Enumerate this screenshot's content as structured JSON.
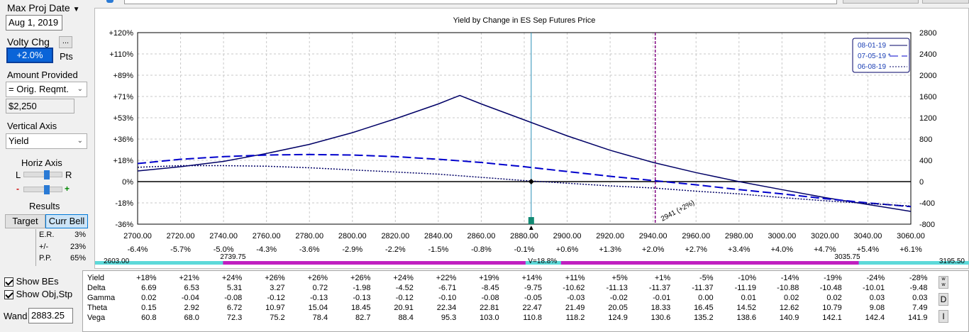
{
  "left_panel": {
    "max_proj_date_label": "Max Proj Date",
    "max_proj_date_value": "Aug 1, 2019",
    "volty_chg_label": "Volty Chg",
    "volty_chg_value": "+2.0%",
    "volty_chg_units": "Pts",
    "ellipsis_label": "...",
    "amount_provided_label": "Amount Provided",
    "amount_provided_option": "= Orig. Reqmt.",
    "amount_value": "$2,250",
    "vertical_axis_label": "Vertical Axis",
    "vertical_axis_option": "Yield",
    "horiz_axis_label": "Horiz Axis",
    "horiz_left": "L",
    "horiz_right": "R",
    "minus": "-",
    "plus": "+",
    "horiz_slider_level": 0.6,
    "zoom_slider_level": 0.6,
    "results_label": "Results",
    "target_label": "Target",
    "curr_bell_label": "Curr Bell",
    "results_rows": [
      {
        "label": "E.R.",
        "value": "3%"
      },
      {
        "label": "+/-",
        "value": "23%"
      },
      {
        "label": "P.P.",
        "value": "65%"
      }
    ],
    "show_bes_label": "Show BEs",
    "show_obj_stp_label": "Show Obj,Stp",
    "wand_label": "Wand",
    "wand_value": "2883.25"
  },
  "chart": {
    "title": "Yield by Change in ES Sep Futures Price",
    "legend": [
      "08-01-19",
      "07-05-19 *",
      "06-08-19"
    ],
    "left_ticks": [
      "+120%",
      "+110%",
      "+89%",
      "+71%",
      "+53%",
      "+36%",
      "+18%",
      "0%",
      "-18%",
      "-36%"
    ],
    "right_ticks": [
      "2800",
      "2400",
      "2000",
      "1600",
      "1200",
      "800",
      "400",
      "0",
      "-400",
      "-800"
    ],
    "x_ticks": [
      "2700.00",
      "2720.00",
      "2740.00",
      "2760.00",
      "2780.00",
      "2800.00",
      "2820.00",
      "2840.00",
      "2860.00",
      "2880.00",
      "2900.00",
      "2920.00",
      "2940.00",
      "2960.00",
      "2980.00",
      "3000.00",
      "3020.00",
      "3040.00",
      "3060.00"
    ],
    "x_pct_ticks": [
      "-6.4%",
      "-5.7%",
      "-5.0%",
      "-4.3%",
      "-3.6%",
      "-2.9%",
      "-2.2%",
      "-1.5%",
      "-0.8%",
      "-0.1%",
      "+0.6%",
      "+1.3%",
      "+2.0%",
      "+2.7%",
      "+3.4%",
      "+4.0%",
      "+4.7%",
      "+5.4%",
      "+6.1%"
    ],
    "marker_label": "2941 (+2%)",
    "range_left": "2603.00",
    "range_right": "3195.50",
    "range_inner_left": "2739.75",
    "range_inner_right": "3035.75",
    "range_center": "V=18.8%"
  },
  "chart_data": {
    "type": "line",
    "title": "Yield by Change in ES Sep Futures Price",
    "xlim": [
      2700,
      3060
    ],
    "ylim": [
      -800,
      2800
    ],
    "current_price": 2883.25,
    "target_price": 2941,
    "series": [
      {
        "name": "08-01-19",
        "x": [
          2700,
          2720,
          2740,
          2760,
          2780,
          2800,
          2820,
          2840,
          2850,
          2860,
          2880,
          2900,
          2920,
          2940,
          2960,
          2980,
          3000,
          3020,
          3040,
          3060
        ],
        "y": [
          200,
          280,
          380,
          530,
          700,
          920,
          1180,
          1460,
          1620,
          1460,
          1160,
          860,
          590,
          360,
          170,
          0,
          -150,
          -300,
          -430,
          -560
        ]
      },
      {
        "name": "07-05-19 *",
        "x": [
          2700,
          2720,
          2740,
          2760,
          2780,
          2800,
          2820,
          2840,
          2860,
          2880,
          2900,
          2920,
          2940,
          2960,
          2980,
          3000,
          3020,
          3040,
          3060
        ],
        "y": [
          340,
          420,
          470,
          500,
          510,
          500,
          470,
          420,
          360,
          280,
          190,
          100,
          20,
          -60,
          -150,
          -230,
          -320,
          -400,
          -470
        ]
      },
      {
        "name": "06-08-19",
        "x": [
          2700,
          2720,
          2740,
          2760,
          2780,
          2800,
          2820,
          2840,
          2860,
          2880,
          2900,
          2920,
          2940,
          2960,
          2980,
          3000,
          3020,
          3040,
          3060
        ],
        "y": [
          270,
          300,
          300,
          290,
          260,
          220,
          180,
          140,
          80,
          20,
          -30,
          -80,
          -120,
          -180,
          -230,
          -300,
          -360,
          -410,
          -460
        ]
      }
    ]
  },
  "greeks": {
    "rows": [
      {
        "label": "Yield",
        "values": [
          "+18%",
          "+21%",
          "+24%",
          "+26%",
          "+26%",
          "+26%",
          "+24%",
          "+22%",
          "+19%",
          "+14%",
          "+11%",
          "+5%",
          "+1%",
          "-5%",
          "-10%",
          "-14%",
          "-19%",
          "-24%",
          "-28%"
        ]
      },
      {
        "label": "Delta",
        "values": [
          "6.69",
          "6.53",
          "5.31",
          "3.27",
          "0.72",
          "-1.98",
          "-4.52",
          "-6.71",
          "-8.45",
          "-9.75",
          "-10.62",
          "-11.13",
          "-11.37",
          "-11.37",
          "-11.19",
          "-10.88",
          "-10.48",
          "-10.01",
          "-9.48"
        ]
      },
      {
        "label": "Gamma",
        "values": [
          "0.02",
          "-0.04",
          "-0.08",
          "-0.12",
          "-0.13",
          "-0.13",
          "-0.12",
          "-0.10",
          "-0.08",
          "-0.05",
          "-0.03",
          "-0.02",
          "-0.01",
          "0.00",
          "0.01",
          "0.02",
          "0.02",
          "0.03",
          "0.03"
        ]
      },
      {
        "label": "Theta",
        "values": [
          "0.15",
          "2.92",
          "6.72",
          "10.97",
          "15.04",
          "18.45",
          "20.91",
          "22.34",
          "22.81",
          "22.47",
          "21.49",
          "20.05",
          "18.33",
          "16.45",
          "14.52",
          "12.62",
          "10.79",
          "9.08",
          "7.49"
        ]
      },
      {
        "label": "Vega",
        "values": [
          "60.8",
          "68.0",
          "72.3",
          "75.2",
          "78.4",
          "82.7",
          "88.4",
          "95.3",
          "103.0",
          "110.8",
          "118.2",
          "124.9",
          "130.6",
          "135.2",
          "138.6",
          "140.9",
          "142.1",
          "142.4",
          "141.9"
        ]
      }
    ],
    "side_buttons": [
      "w w",
      "D",
      "I"
    ]
  }
}
